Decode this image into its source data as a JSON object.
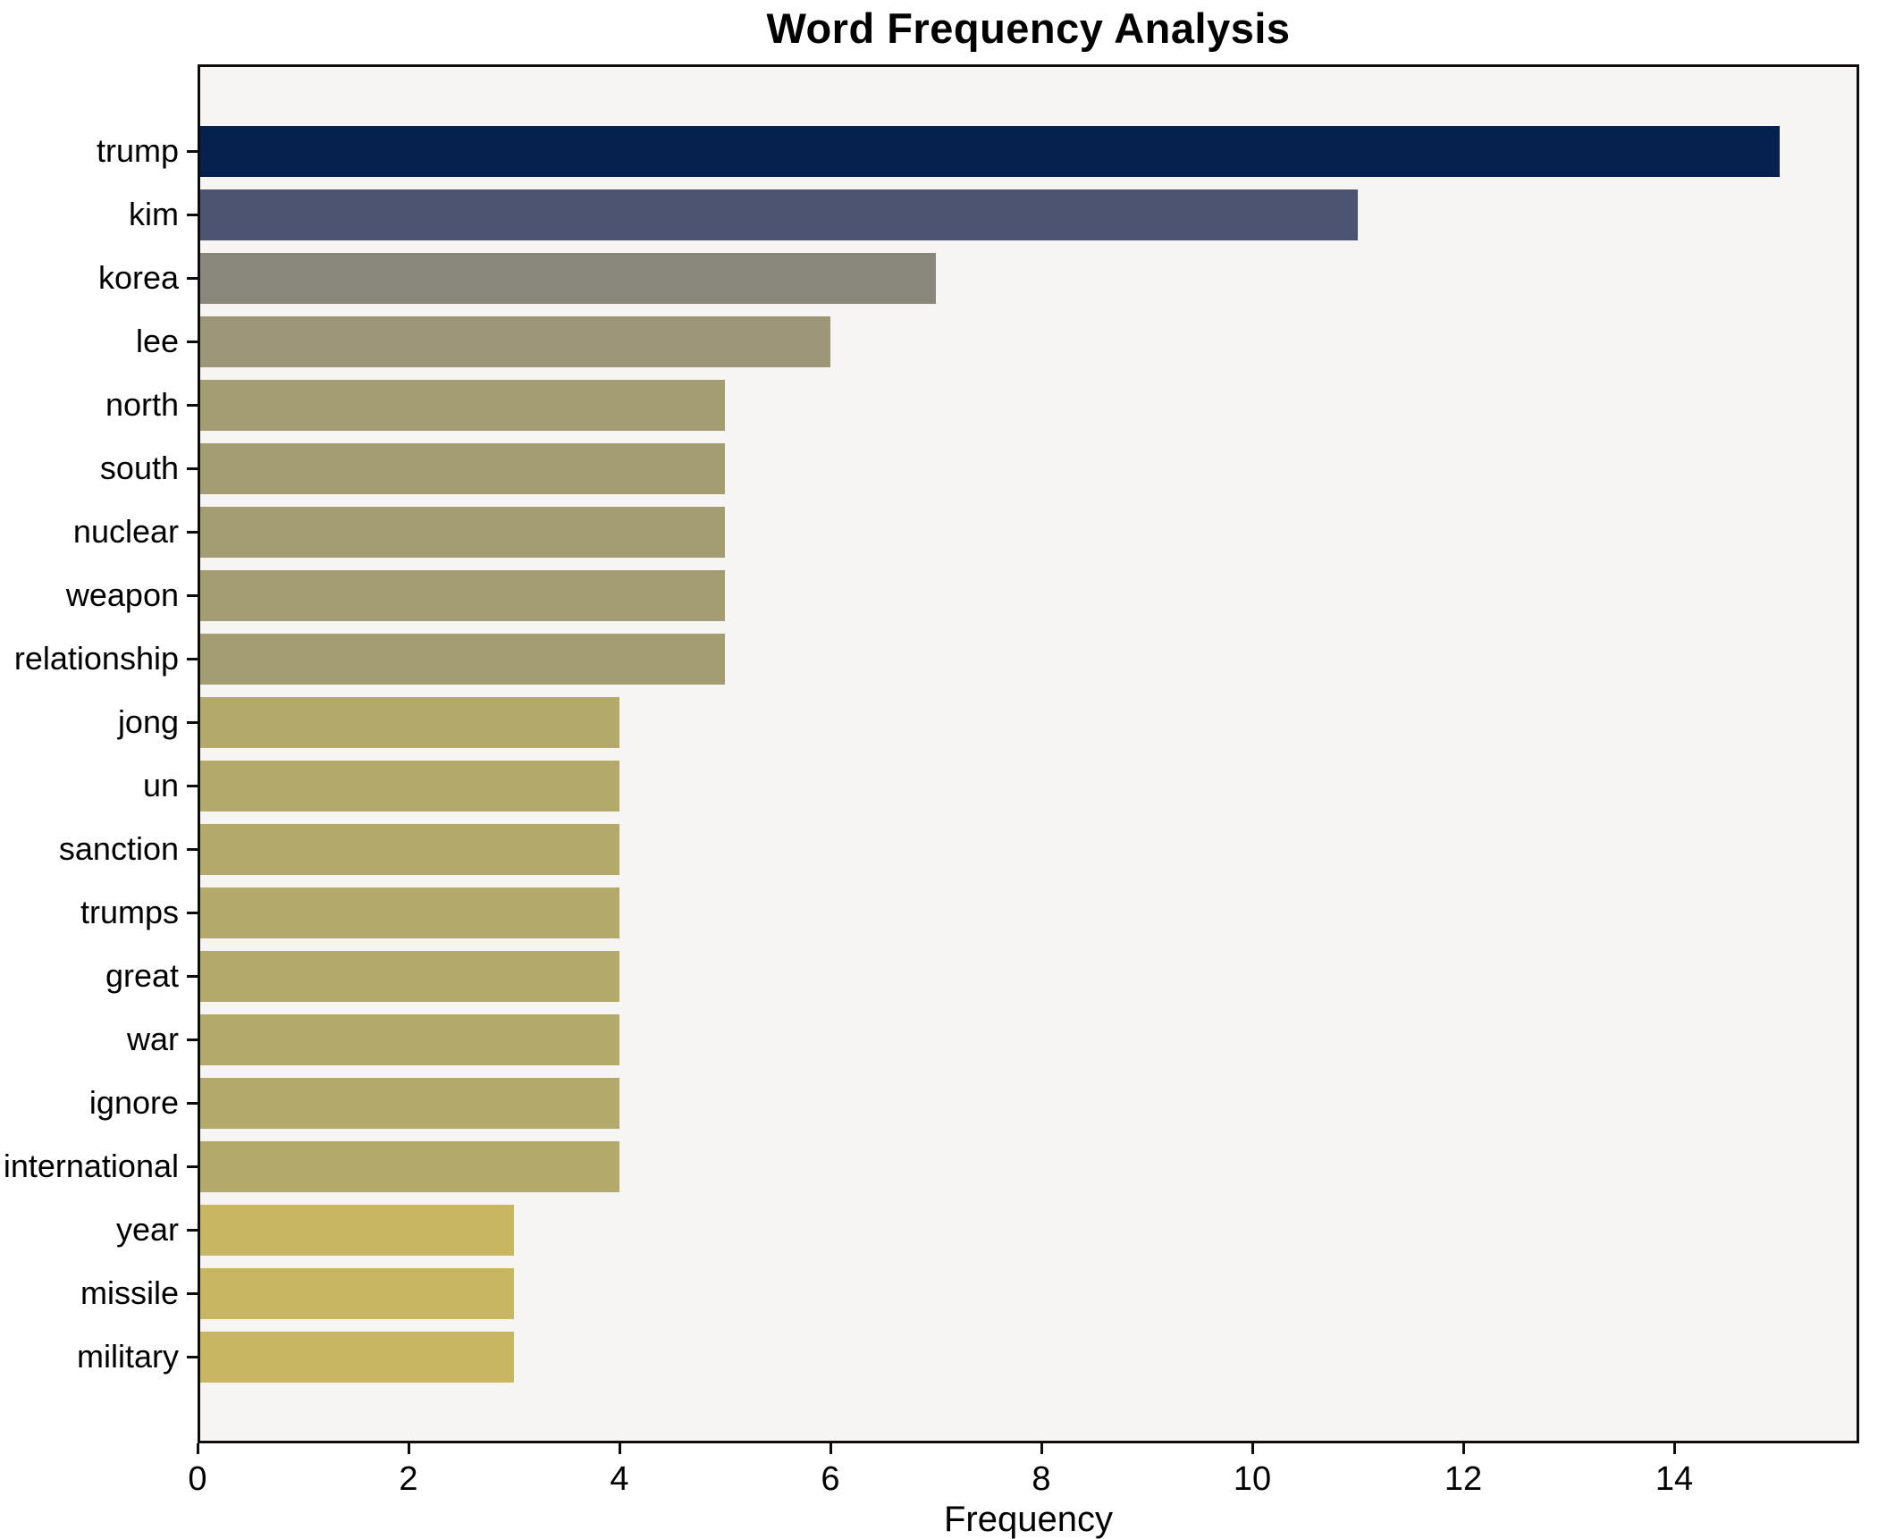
{
  "chart_data": {
    "type": "bar",
    "orientation": "horizontal",
    "title": "Word Frequency Analysis",
    "xlabel": "Frequency",
    "ylabel": "",
    "categories": [
      "trump",
      "kim",
      "korea",
      "lee",
      "north",
      "south",
      "nuclear",
      "weapon",
      "relationship",
      "jong",
      "un",
      "sanction",
      "trumps",
      "great",
      "war",
      "ignore",
      "international",
      "year",
      "missile",
      "military"
    ],
    "values": [
      15,
      11,
      7,
      6,
      5,
      5,
      5,
      5,
      5,
      4,
      4,
      4,
      4,
      4,
      4,
      4,
      4,
      3,
      3,
      3
    ],
    "bar_colors": [
      "#07214e",
      "#4c5471",
      "#8a877c",
      "#9d9678",
      "#a49c73",
      "#a49c73",
      "#a49c73",
      "#a49c73",
      "#a49c73",
      "#b3a96b",
      "#b3a96b",
      "#b3a96b",
      "#b3a96b",
      "#b3a96b",
      "#b3a96b",
      "#b3a96b",
      "#b3a96b",
      "#c9b662",
      "#c9b662",
      "#c9b662"
    ],
    "x_ticks": [
      0,
      2,
      4,
      6,
      8,
      10,
      12,
      14
    ],
    "xlim": [
      0,
      15.75
    ],
    "grid": false,
    "legend": null,
    "plot_background": "#f6f5f3",
    "figure_background": "#ffffff"
  }
}
